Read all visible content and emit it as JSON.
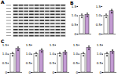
{
  "blot": {
    "label": "A"
  },
  "chart_data": [
    {
      "type": "bar",
      "title": "B",
      "categories": [
        null,
        null
      ],
      "values": [
        1.0,
        1.05
      ],
      "colors": [
        "#ffffff",
        "#c39bd3"
      ],
      "points": [
        [
          0.9,
          1.1,
          0.95,
          1.05
        ],
        [
          0.95,
          1.15,
          1.0,
          1.1
        ]
      ],
      "ylim": [
        0,
        1.5
      ],
      "yticks": [
        0,
        0.5,
        {
          "value": 1,
          "label": "1.0"
        },
        1.5
      ],
      "grid": false
    },
    {
      "type": "bar",
      "categories": [
        null,
        null
      ],
      "values": [
        1.0,
        1.25
      ],
      "colors": [
        "#ffffff",
        "#c39bd3"
      ],
      "points": [
        [
          0.9,
          1.1,
          0.95,
          1.05
        ],
        [
          1.15,
          1.35,
          1.2,
          1.3
        ]
      ],
      "ylim": [
        0,
        1.5
      ],
      "yticks": [
        0,
        0.5,
        {
          "value": 1,
          "label": "1.0"
        },
        1.5
      ],
      "grid": false
    },
    {
      "type": "bar",
      "title": "C",
      "categories": [
        null,
        null
      ],
      "values": [
        1.0,
        1.3
      ],
      "colors": [
        "#ffffff",
        "#c39bd3"
      ],
      "points": [
        [
          0.9,
          1.1,
          0.95,
          1.05
        ],
        [
          1.2,
          1.4,
          1.25,
          1.35
        ]
      ],
      "ylim": [
        0,
        1.5
      ],
      "yticks": [
        0,
        0.5,
        {
          "value": 1,
          "label": "1.0"
        },
        1.5
      ],
      "grid": false
    },
    {
      "type": "bar",
      "categories": [
        null,
        null
      ],
      "values": [
        1.0,
        1.2
      ],
      "colors": [
        "#ffffff",
        "#c39bd3"
      ],
      "points": [
        [
          0.9,
          1.1,
          0.95,
          1.05
        ],
        [
          1.1,
          1.3,
          1.15,
          1.25
        ]
      ],
      "ylim": [
        0,
        1.5
      ],
      "yticks": [
        0,
        0.5,
        {
          "value": 1,
          "label": "1.0"
        },
        1.5
      ],
      "grid": false
    },
    {
      "type": "bar",
      "categories": [
        null,
        null
      ],
      "values": [
        1.0,
        1.1
      ],
      "colors": [
        "#ffffff",
        "#c39bd3"
      ],
      "points": [
        [
          0.9,
          1.1,
          0.95,
          1.05
        ],
        [
          1.0,
          1.2,
          1.05,
          1.15
        ]
      ],
      "ylim": [
        0,
        1.5
      ],
      "yticks": [
        0,
        0.5,
        {
          "value": 1,
          "label": "1.0"
        },
        1.5
      ],
      "grid": false
    },
    {
      "type": "bar",
      "categories": [
        null,
        null
      ],
      "values": [
        1.0,
        1.35
      ],
      "colors": [
        "#ffffff",
        "#c39bd3"
      ],
      "points": [
        [
          0.9,
          1.1,
          0.95,
          1.05
        ],
        [
          1.25,
          1.45,
          1.3,
          1.4
        ]
      ],
      "ylim": [
        0,
        1.5
      ],
      "yticks": [
        0,
        0.5,
        {
          "value": 1,
          "label": "1.0"
        },
        1.5
      ],
      "grid": false
    },
    {
      "type": "bar",
      "categories": [
        null,
        null
      ],
      "values": [
        1.0,
        1.15
      ],
      "colors": [
        "#ffffff",
        "#c39bd3"
      ],
      "points": [
        [
          0.9,
          1.1,
          0.95,
          1.05
        ],
        [
          1.05,
          1.25,
          1.1,
          1.2
        ]
      ],
      "ylim": [
        0,
        1.5
      ],
      "yticks": [
        0,
        0.5,
        {
          "value": 1,
          "label": "1.0"
        },
        1.5
      ],
      "grid": false
    }
  ]
}
